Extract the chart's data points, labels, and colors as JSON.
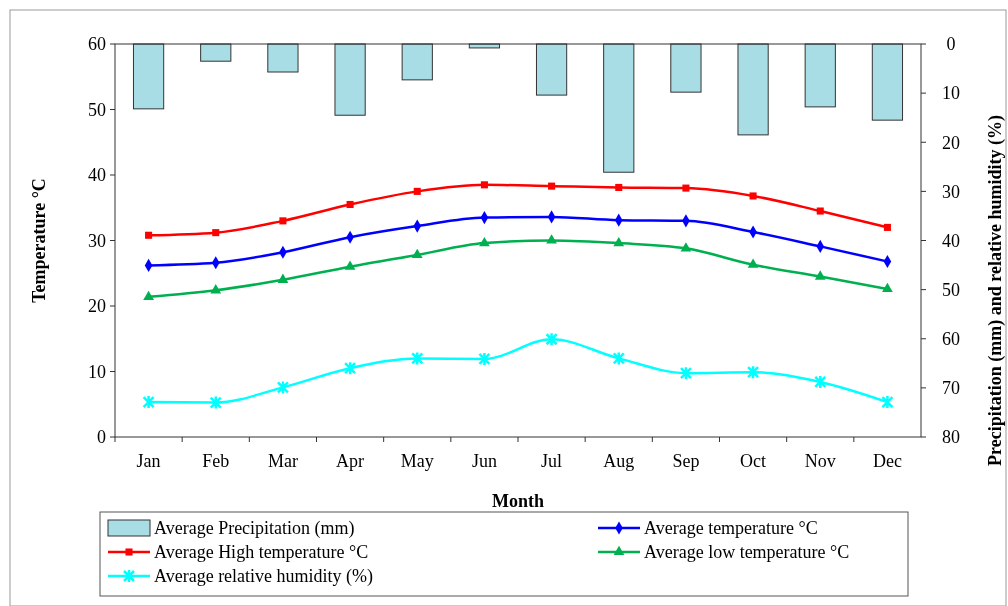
{
  "chart_data": {
    "type": "line",
    "xlabel": "Month",
    "ylabel": "Temperature °C",
    "y2label": "Precipitation (mm) and relative humidity  (%)",
    "categories": [
      "Jan",
      "Feb",
      "Mar",
      "Apr",
      "May",
      "Jun",
      "Jul",
      "Aug",
      "Sep",
      "Oct",
      "Nov",
      "Dec"
    ],
    "ylim": [
      0,
      60
    ],
    "yticks": [
      0,
      10,
      20,
      30,
      40,
      50,
      60
    ],
    "y2lim": [
      80,
      0
    ],
    "y2ticks": [
      0,
      10,
      20,
      30,
      40,
      50,
      60,
      70,
      80
    ],
    "grid": false,
    "legend": "bottom",
    "series": [
      {
        "name": "Average Precipitation (mm)",
        "type": "bar",
        "axis": "y2",
        "color": "#a8dde6",
        "values": [
          13.2,
          3.5,
          5.7,
          14.5,
          7.3,
          0.8,
          10.4,
          26.1,
          9.8,
          18.5,
          12.8,
          15.5
        ]
      },
      {
        "name": "Average temperature °C",
        "color": "#0000ff",
        "marker": "diamond",
        "values": [
          26.2,
          26.6,
          28.2,
          30.5,
          32.2,
          33.5,
          33.6,
          33.1,
          33,
          31.3,
          29.1,
          26.8
        ]
      },
      {
        "name": "Average High temperature °C",
        "color": "#ff0000",
        "marker": "square",
        "values": [
          30.8,
          31.2,
          33,
          35.5,
          37.5,
          38.5,
          38.3,
          38.1,
          38,
          36.8,
          34.5,
          32
        ]
      },
      {
        "name": "Average low temperature °C",
        "color": "#00b050",
        "marker": "triangle",
        "values": [
          21.4,
          22.4,
          24,
          26,
          27.8,
          29.6,
          30,
          29.6,
          28.8,
          26.3,
          24.5,
          22.6
        ]
      },
      {
        "name": "Average relative humidity (%)",
        "axis": "y2",
        "color": "#00ffff",
        "marker": "cross",
        "values": [
          72.9,
          73,
          69.9,
          66,
          64,
          64.1,
          60.1,
          64,
          67,
          66.8,
          68.8,
          72.9
        ]
      }
    ]
  }
}
